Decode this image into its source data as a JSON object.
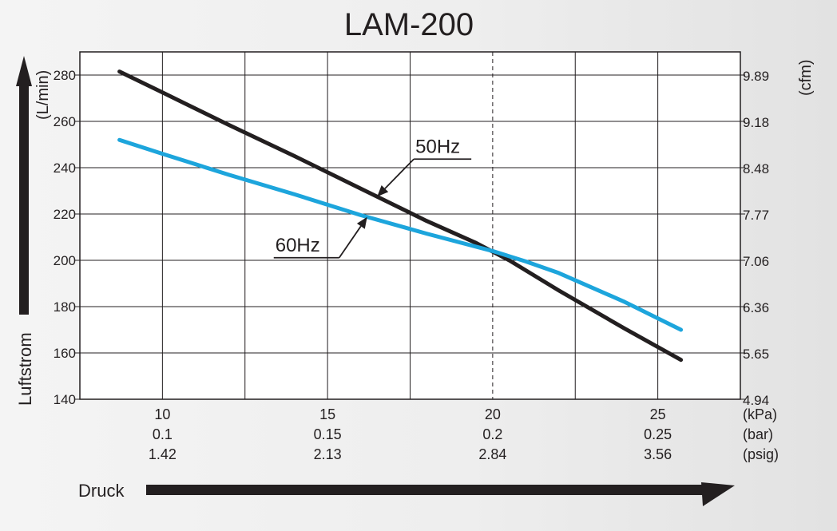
{
  "chart_data": {
    "type": "line",
    "title": "LAM-200",
    "ylabel": "Luftstrom",
    "xlabel": "Druck",
    "y_unit_left": "(L/min)",
    "y_unit_right": "(cfm)",
    "x_units": [
      "(kPa)",
      "(bar)",
      "(psig)"
    ],
    "xlim": [
      7.5,
      27.5
    ],
    "ylim": [
      140,
      290
    ],
    "x_ticks": [
      10,
      15,
      20,
      25
    ],
    "x_tick_rows": [
      [
        "10",
        "15",
        "20",
        "25"
      ],
      [
        "0.1",
        "0.15",
        "0.2",
        "0.25"
      ],
      [
        "1.42",
        "2.13",
        "2.84",
        "3.56"
      ]
    ],
    "y_ticks_left": [
      140,
      160,
      180,
      200,
      220,
      240,
      260,
      280
    ],
    "y_ticks_right": [
      {
        "value": 140,
        "label": "4.94"
      },
      {
        "value": 160,
        "label": "5.65"
      },
      {
        "value": 180,
        "label": "6.36"
      },
      {
        "value": 200,
        "label": "7.06"
      },
      {
        "value": 220,
        "label": "7.77"
      },
      {
        "value": 240,
        "label": "8.48"
      },
      {
        "value": 260,
        "label": "9.18"
      },
      {
        "value": 280,
        "label": "9.89"
      }
    ],
    "x_gridlines": [
      10,
      12.5,
      15,
      17.5,
      20,
      22.5,
      25
    ],
    "dashed_x": 20,
    "grid": true,
    "series": [
      {
        "name": "50Hz",
        "color": "#231f20",
        "x": [
          8.7,
          10,
          12,
          14,
          16,
          18,
          19.5,
          20.5,
          22,
          24,
          25.7
        ],
        "y": [
          281.5,
          272.5,
          258.5,
          245,
          231,
          217,
          207.5,
          200,
          187,
          170.5,
          157
        ]
      },
      {
        "name": "60Hz",
        "color": "#1da5dc",
        "x": [
          8.7,
          10,
          12,
          14,
          16,
          18,
          20,
          21,
          22,
          24,
          25.7
        ],
        "y": [
          252,
          246,
          237,
          228.5,
          219.5,
          211.5,
          204,
          199.5,
          194.5,
          182,
          170
        ]
      }
    ],
    "annotations": [
      {
        "text": "50Hz",
        "series": 0,
        "x": 16.5
      },
      {
        "text": "60Hz",
        "series": 1,
        "x": 16.2
      }
    ]
  }
}
